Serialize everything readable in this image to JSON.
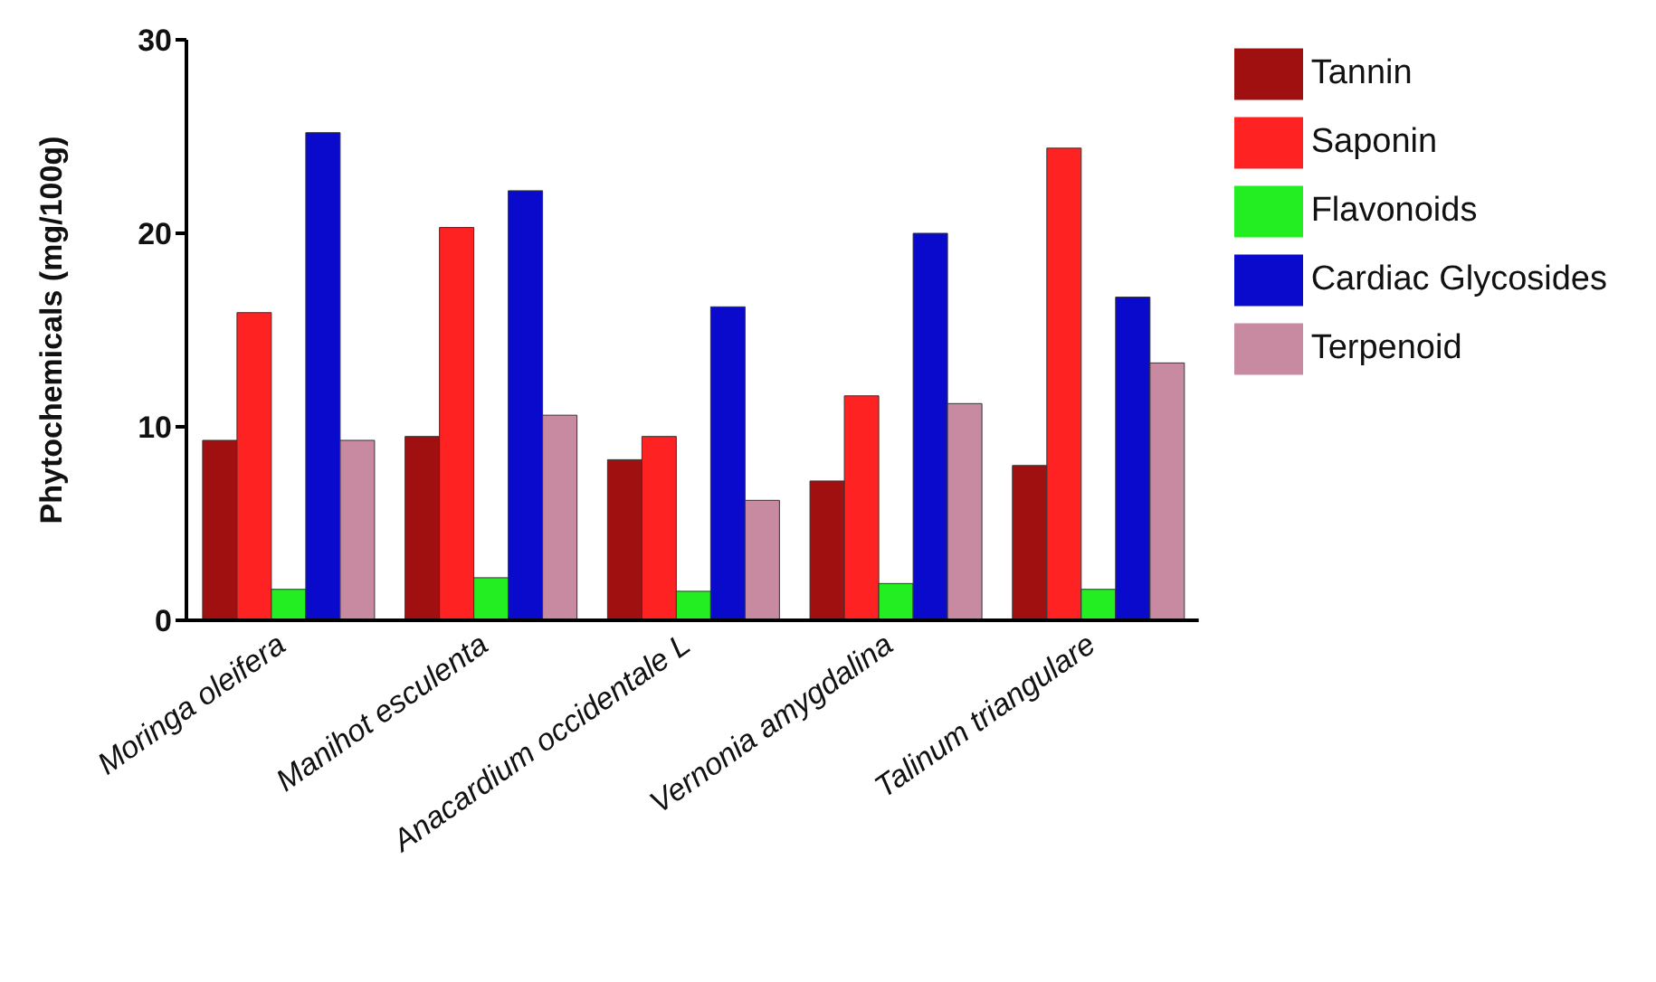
{
  "chart_data": {
    "type": "bar",
    "ylabel": "Phytochemicals (mg/100g)",
    "categories": [
      "Moringa oleifera",
      "Manihot esculenta",
      "Anacardium occidentale L",
      "Vernonia amygdalina",
      "Talinum triangulare"
    ],
    "series": [
      {
        "name": "Tannin",
        "color": "#a01010",
        "values": [
          9.3,
          9.5,
          8.3,
          7.2,
          8.0
        ]
      },
      {
        "name": "Saponin",
        "color": "#ff2222",
        "values": [
          15.9,
          20.3,
          9.5,
          11.6,
          24.4
        ]
      },
      {
        "name": "Flavonoids",
        "color": "#22ee22",
        "values": [
          1.6,
          2.2,
          1.5,
          1.9,
          1.6
        ]
      },
      {
        "name": "Cardiac Glycosides",
        "color": "#0a0acc",
        "values": [
          25.2,
          22.2,
          16.2,
          20.0,
          16.7
        ]
      },
      {
        "name": "Terpenoid",
        "color": "#c88aa0",
        "values": [
          9.3,
          10.6,
          6.2,
          11.2,
          13.3
        ]
      }
    ],
    "ylim": [
      0,
      30
    ],
    "yticks": [
      0,
      10,
      20,
      30
    ],
    "grid": false,
    "legend": "top right"
  }
}
